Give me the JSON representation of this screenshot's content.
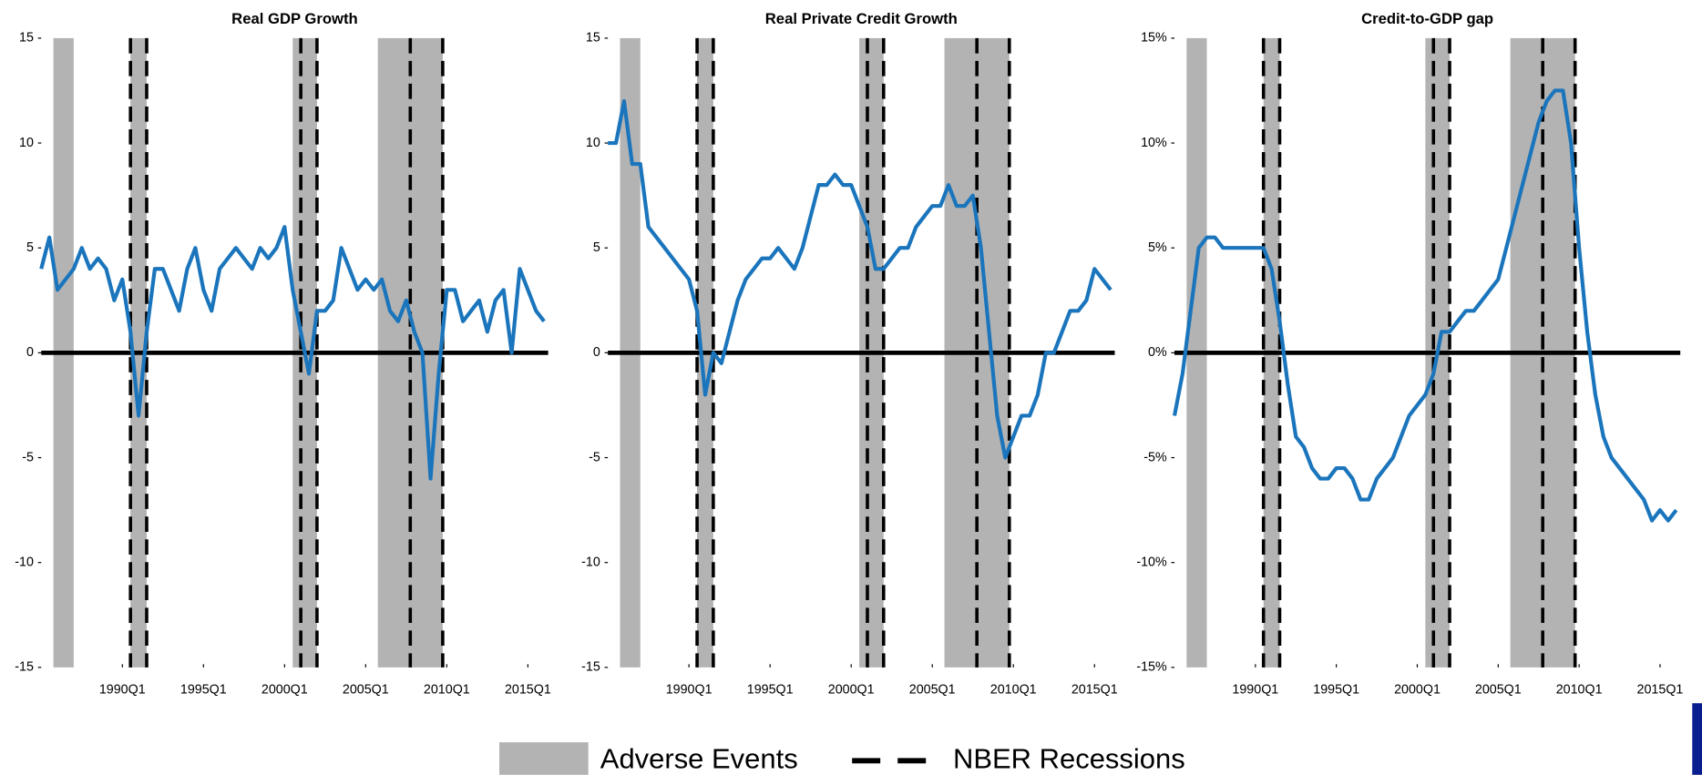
{
  "chart_data": [
    {
      "type": "line",
      "title": "Real GDP Growth",
      "color": "#1a75bc",
      "zero_line": true,
      "xlim": [
        1985,
        2016.25
      ],
      "ylim": [
        -15,
        15
      ],
      "yticks": [
        -15,
        -10,
        -5,
        0,
        5,
        10,
        15
      ],
      "xticks": [
        {
          "value": 1990,
          "label": "1990Q1"
        },
        {
          "value": 1995,
          "label": "1995Q1"
        },
        {
          "value": 2000,
          "label": "2000Q1"
        },
        {
          "value": 2005,
          "label": "2005Q1"
        },
        {
          "value": 2010,
          "label": "2010Q1"
        },
        {
          "value": 2015,
          "label": "2015Q1"
        }
      ],
      "x": [
        1985,
        1985.5,
        1986,
        1986.5,
        1987,
        1987.5,
        1988,
        1988.5,
        1989,
        1989.5,
        1990,
        1990.5,
        1991,
        1991.5,
        1992,
        1992.5,
        1993,
        1993.5,
        1994,
        1994.5,
        1995,
        1995.5,
        1996,
        1996.5,
        1997,
        1997.5,
        1998,
        1998.5,
        1999,
        1999.5,
        2000,
        2000.5,
        2001,
        2001.5,
        2002,
        2002.5,
        2003,
        2003.5,
        2004,
        2004.5,
        2005,
        2005.5,
        2006,
        2006.5,
        2007,
        2007.5,
        2008,
        2008.5,
        2009,
        2009.5,
        2010,
        2010.5,
        2011,
        2011.5,
        2012,
        2012.5,
        2013,
        2013.5,
        2014,
        2014.5,
        2015,
        2015.5,
        2016
      ],
      "values": [
        4,
        5.5,
        3,
        3.5,
        4,
        5,
        4,
        4.5,
        4,
        2.5,
        3.5,
        1,
        -3,
        1,
        4,
        4,
        3,
        2,
        4,
        5,
        3,
        2,
        4,
        4.5,
        5,
        4.5,
        4,
        5,
        4.5,
        5,
        6,
        3,
        1,
        -1,
        2,
        2,
        2.5,
        5,
        4,
        3,
        3.5,
        3,
        3.5,
        2,
        1.5,
        2.5,
        1,
        0,
        -6,
        -1,
        3,
        3,
        1.5,
        2,
        2.5,
        1,
        2.5,
        3,
        0,
        4,
        3,
        2,
        1.5
      ]
    },
    {
      "type": "line",
      "title": "Real Private Credit Growth",
      "color": "#1a75bc",
      "zero_line": true,
      "xlim": [
        1985,
        2016.25
      ],
      "ylim": [
        -15,
        15
      ],
      "yticks": [
        -15,
        -10,
        -5,
        0,
        5,
        10,
        15
      ],
      "xticks": [
        {
          "value": 1990,
          "label": "1990Q1"
        },
        {
          "value": 1995,
          "label": "1995Q1"
        },
        {
          "value": 2000,
          "label": "2000Q1"
        },
        {
          "value": 2005,
          "label": "2005Q1"
        },
        {
          "value": 2010,
          "label": "2010Q1"
        },
        {
          "value": 2015,
          "label": "2015Q1"
        }
      ],
      "x": [
        1985,
        1985.5,
        1986,
        1986.5,
        1987,
        1987.5,
        1988,
        1988.5,
        1989,
        1989.5,
        1990,
        1990.5,
        1991,
        1991.5,
        1992,
        1992.5,
        1993,
        1993.5,
        1994,
        1994.5,
        1995,
        1995.5,
        1996,
        1996.5,
        1997,
        1997.5,
        1998,
        1998.5,
        1999,
        1999.5,
        2000,
        2000.5,
        2001,
        2001.5,
        2002,
        2002.5,
        2003,
        2003.5,
        2004,
        2004.5,
        2005,
        2005.5,
        2006,
        2006.5,
        2007,
        2007.5,
        2008,
        2008.5,
        2009,
        2009.5,
        2010,
        2010.5,
        2011,
        2011.5,
        2012,
        2012.5,
        2013,
        2013.5,
        2014,
        2014.5,
        2015,
        2015.5,
        2016
      ],
      "values": [
        10,
        10,
        12,
        9,
        9,
        6,
        5.5,
        5,
        4.5,
        4,
        3.5,
        2,
        -2,
        0,
        -0.5,
        1,
        2.5,
        3.5,
        4,
        4.5,
        4.5,
        5,
        4.5,
        4,
        5,
        6.5,
        8,
        8,
        8.5,
        8,
        8,
        7,
        6,
        4,
        4,
        4.5,
        5,
        5,
        6,
        6.5,
        7,
        7,
        8,
        7,
        7,
        7.5,
        5,
        1,
        -3,
        -5,
        -4,
        -3,
        -3,
        -2,
        0,
        0,
        1,
        2,
        2,
        2.5,
        4,
        3.5,
        3
      ]
    },
    {
      "type": "line",
      "title": "Credit-to-GDP gap",
      "color": "#1a75bc",
      "zero_line": true,
      "xlim": [
        1985,
        2016.25
      ],
      "ylim": [
        -15,
        15
      ],
      "yticks": [
        {
          "value": -15,
          "label": "-15%"
        },
        {
          "value": -10,
          "label": "-10%"
        },
        {
          "value": -5,
          "label": "-5%"
        },
        {
          "value": 0,
          "label": "0%"
        },
        {
          "value": 5,
          "label": "5%"
        },
        {
          "value": 10,
          "label": "10%"
        },
        {
          "value": 15,
          "label": "15%"
        }
      ],
      "xticks": [
        {
          "value": 1990,
          "label": "1990Q1"
        },
        {
          "value": 1995,
          "label": "1995Q1"
        },
        {
          "value": 2000,
          "label": "2000Q1"
        },
        {
          "value": 2005,
          "label": "2005Q1"
        },
        {
          "value": 2010,
          "label": "2010Q1"
        },
        {
          "value": 2015,
          "label": "2015Q1"
        }
      ],
      "x": [
        1985,
        1985.5,
        1986,
        1986.5,
        1987,
        1987.5,
        1988,
        1988.5,
        1989,
        1989.5,
        1990,
        1990.5,
        1991,
        1991.5,
        1992,
        1992.5,
        1993,
        1993.5,
        1994,
        1994.5,
        1995,
        1995.5,
        1996,
        1996.5,
        1997,
        1997.5,
        1998,
        1998.5,
        1999,
        1999.5,
        2000,
        2000.5,
        2001,
        2001.5,
        2002,
        2002.5,
        2003,
        2003.5,
        2004,
        2004.5,
        2005,
        2005.5,
        2006,
        2006.5,
        2007,
        2007.5,
        2008,
        2008.5,
        2009,
        2009.5,
        2010,
        2010.5,
        2011,
        2011.5,
        2012,
        2012.5,
        2013,
        2013.5,
        2014,
        2014.5,
        2015,
        2015.5,
        2016
      ],
      "values": [
        -3,
        -1,
        2,
        5,
        5.5,
        5.5,
        5,
        5,
        5,
        5,
        5,
        5,
        4,
        1.5,
        -1.5,
        -4,
        -4.5,
        -5.5,
        -6,
        -6,
        -5.5,
        -5.5,
        -6,
        -7,
        -7,
        -6,
        -5.5,
        -5,
        -4,
        -3,
        -2.5,
        -2,
        -1,
        1,
        1,
        1.5,
        2,
        2,
        2.5,
        3,
        3.5,
        5,
        6.5,
        8,
        9.5,
        11,
        12,
        12.5,
        12.5,
        10,
        5,
        1,
        -2,
        -4,
        -5,
        -5.5,
        -6,
        -6.5,
        -7,
        -8,
        -7.5,
        -8,
        -7.5
      ]
    }
  ],
  "shading": {
    "adverse_color": "#b3b3b3",
    "adverse_events": [
      [
        1985.75,
        1987.0
      ],
      [
        1990.5,
        1991.5
      ],
      [
        2000.5,
        2002.0
      ],
      [
        2005.75,
        2009.75
      ]
    ],
    "nber_recessions": [
      [
        1990.5,
        1991.5
      ],
      [
        2001.0,
        2002.0
      ],
      [
        2007.75,
        2009.75
      ]
    ]
  },
  "legend": {
    "adverse_events": "Adverse Events",
    "nber_recessions": "NBER Recessions"
  }
}
